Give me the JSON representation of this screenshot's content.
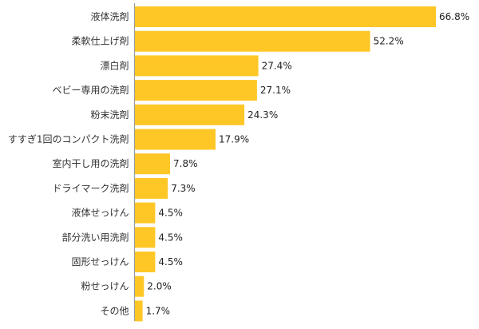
{
  "chart_data": {
    "type": "bar",
    "orientation": "horizontal",
    "categories": [
      "液体洗剤",
      "柔軟仕上げ剤",
      "漂白剤",
      "ベビー専用の洗剤",
      "粉末洗剤",
      "すすぎ1回のコンパクト洗剤",
      "室内干し用の洗剤",
      "ドライマーク洗剤",
      "液体せっけん",
      "部分洗い用洗剤",
      "固形せっけん",
      "粉せっけん",
      "その他"
    ],
    "values": [
      66.8,
      52.2,
      27.4,
      27.1,
      24.3,
      17.9,
      7.8,
      7.3,
      4.5,
      4.5,
      4.5,
      2.0,
      1.7
    ],
    "value_labels": [
      "66.8%",
      "52.2%",
      "27.4%",
      "27.1%",
      "24.3%",
      "17.9%",
      "7.8%",
      "7.3%",
      "4.5%",
      "4.5%",
      "4.5%",
      "2.0%",
      "1.7%"
    ],
    "unit": "%",
    "xlim": [
      0,
      68
    ],
    "grid": false,
    "bar_color": "#FFC726",
    "axis_color": "#999999"
  }
}
